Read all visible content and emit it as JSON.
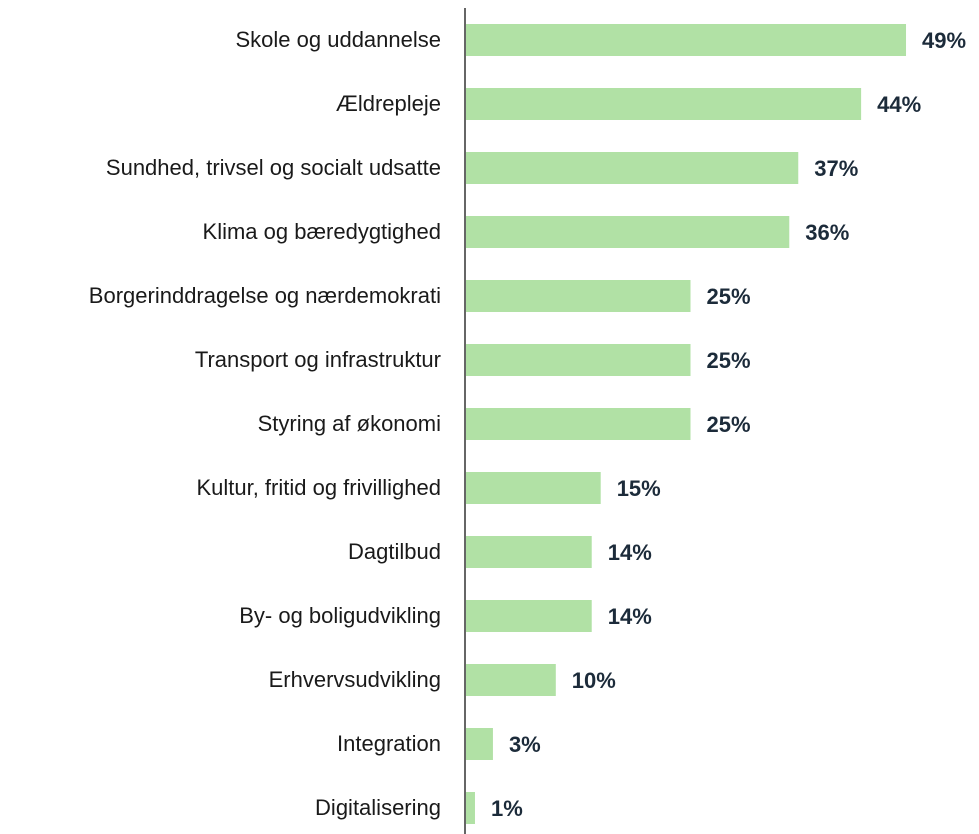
{
  "chart_data": {
    "type": "barh",
    "categories": [
      "Skole og uddannelse",
      "Ældrepleje",
      "Sundhed, trivsel og socialt udsatte",
      "Klima og bæredygtighed",
      "Borgerinddragelse og nærdemokrati",
      "Transport og infrastruktur",
      "Styring af økonomi",
      "Kultur, fritid og frivillighed",
      "Dagtilbud",
      "By- og boligudvikling",
      "Erhvervsudvikling",
      "Integration",
      "Digitalisering"
    ],
    "values": [
      49,
      44,
      37,
      36,
      25,
      25,
      25,
      15,
      14,
      14,
      10,
      3,
      1
    ],
    "value_labels": [
      "49%",
      "44%",
      "37%",
      "36%",
      "25%",
      "25%",
      "25%",
      "15%",
      "14%",
      "14%",
      "10%",
      "3%",
      "1%"
    ],
    "color": "#b1e1a5"
  }
}
